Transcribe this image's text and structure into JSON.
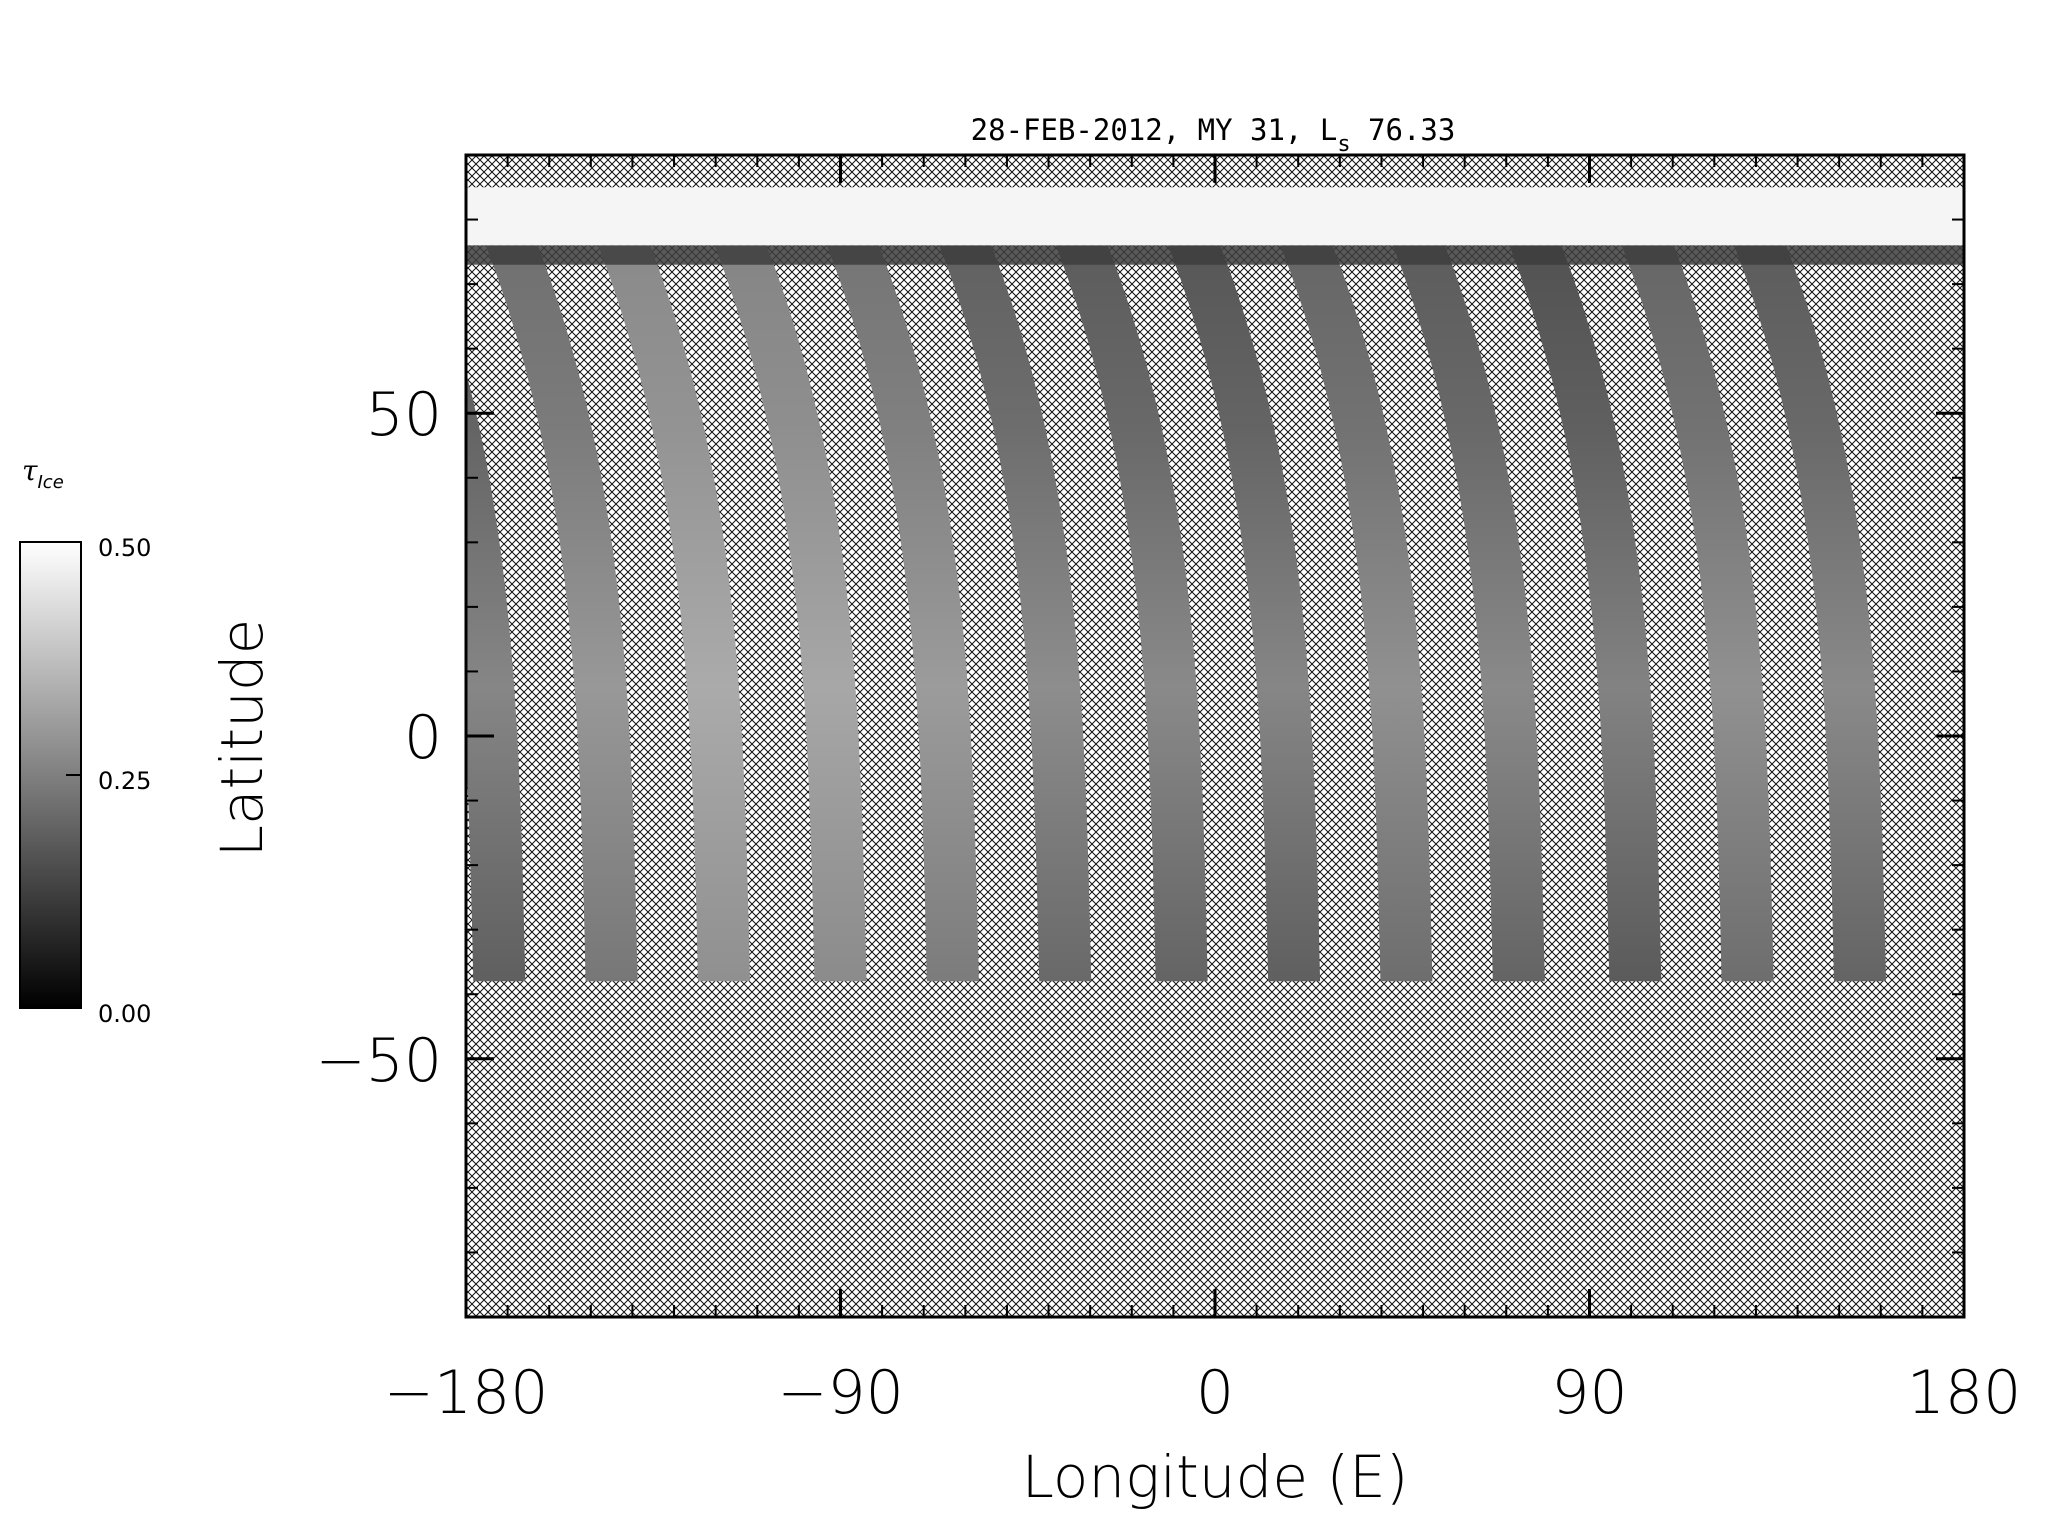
{
  "chart_data": {
    "type": "heatmap",
    "title": "28-FEB-2012, MY 31,  L",
    "title_subscript": "s",
    "title_suffix": " 76.33",
    "xlabel": "Longitude (E)",
    "ylabel": "Latitude",
    "xlim": [
      -180,
      180
    ],
    "ylim": [
      -90,
      90
    ],
    "x_ticks": [
      -180,
      -90,
      0,
      90,
      180
    ],
    "x_tick_labels": [
      "−180",
      "−90",
      "0",
      "90",
      "180"
    ],
    "y_ticks": [
      50,
      0,
      -50
    ],
    "y_tick_labels": [
      "50",
      "0",
      "−50"
    ],
    "no_data_pattern": "crosshatch",
    "colorbar": {
      "label": "τ",
      "label_subscript": "Ice",
      "colormap": "grayscale",
      "range": [
        0.0,
        0.5
      ],
      "tick_labels": [
        "0.50",
        "0.25",
        "0.00"
      ]
    },
    "swaths": [
      {
        "lon_south": -172,
        "value": 0.17
      },
      {
        "lon_south": -145,
        "value": 0.22
      },
      {
        "lon_south": -118,
        "value": 0.27
      },
      {
        "lon_south": -90,
        "value": 0.26
      },
      {
        "lon_south": -63,
        "value": 0.23
      },
      {
        "lon_south": -36,
        "value": 0.19
      },
      {
        "lon_south": -8,
        "value": 0.18
      },
      {
        "lon_south": 19,
        "value": 0.17
      },
      {
        "lon_south": 46,
        "value": 0.2
      },
      {
        "lon_south": 73,
        "value": 0.18
      },
      {
        "lon_south": 101,
        "value": 0.16
      },
      {
        "lon_south": 128,
        "value": 0.2
      },
      {
        "lon_south": 155,
        "value": 0.18
      }
    ],
    "swath_lat_range": [
      -38,
      76
    ],
    "polar_cap_lat_range": [
      76,
      85
    ],
    "polar_cap_value": 0.48
  }
}
